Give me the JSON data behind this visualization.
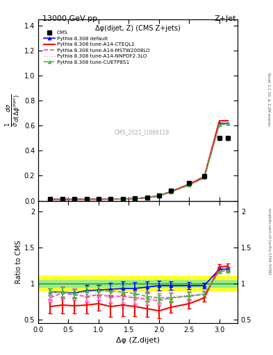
{
  "title_top": "13000 GeV pp",
  "title_right": "Z+Jet",
  "plot_title": "Δφ(dijet, Z) (CMS Z+jets)",
  "watermark": "CMS_2021_I1866118",
  "xlabel": "Δφ (Z,dijet)",
  "ylabel_ratio": "Ratio to CMS",
  "right_label": "Rivet 3.1.10, ≥ 2.2M events",
  "right_label2": "mcplots.cern.ch [arXiv:1306.3436]",
  "cms_x": [
    0.2,
    0.4,
    0.6,
    0.8,
    1.0,
    1.2,
    1.4,
    1.6,
    1.8,
    2.0,
    2.2,
    2.5,
    2.75,
    3.0,
    3.14
  ],
  "cms_y": [
    0.012,
    0.012,
    0.013,
    0.013,
    0.013,
    0.014,
    0.015,
    0.018,
    0.025,
    0.042,
    0.08,
    0.14,
    0.195,
    0.5,
    0.5
  ],
  "cms_yerr": [
    0.001,
    0.001,
    0.001,
    0.001,
    0.001,
    0.001,
    0.001,
    0.001,
    0.002,
    0.003,
    0.005,
    0.008,
    0.01,
    0.02,
    0.02
  ],
  "default_x": [
    0.2,
    0.4,
    0.6,
    0.8,
    1.0,
    1.2,
    1.4,
    1.6,
    1.8,
    2.0,
    2.2,
    2.5,
    2.75,
    3.0,
    3.14
  ],
  "default_y": [
    0.011,
    0.011,
    0.011,
    0.012,
    0.012,
    0.013,
    0.014,
    0.017,
    0.024,
    0.04,
    0.073,
    0.13,
    0.19,
    0.62,
    0.62
  ],
  "cteql1_x": [
    0.2,
    0.4,
    0.6,
    0.8,
    1.0,
    1.2,
    1.4,
    1.6,
    1.8,
    2.0,
    2.2,
    2.5,
    2.75,
    3.0,
    3.14
  ],
  "cteql1_y": [
    0.011,
    0.011,
    0.011,
    0.012,
    0.012,
    0.013,
    0.014,
    0.017,
    0.024,
    0.04,
    0.074,
    0.132,
    0.192,
    0.64,
    0.64
  ],
  "mstw_x": [
    0.2,
    0.4,
    0.6,
    0.8,
    1.0,
    1.2,
    1.4,
    1.6,
    1.8,
    2.0,
    2.2,
    2.5,
    2.75,
    3.0,
    3.14
  ],
  "mstw_y": [
    0.01,
    0.011,
    0.011,
    0.011,
    0.012,
    0.013,
    0.014,
    0.017,
    0.024,
    0.038,
    0.07,
    0.125,
    0.183,
    0.61,
    0.61
  ],
  "nnpdf_x": [
    0.2,
    0.4,
    0.6,
    0.8,
    1.0,
    1.2,
    1.4,
    1.6,
    1.8,
    2.0,
    2.2,
    2.5,
    2.75,
    3.0,
    3.14
  ],
  "nnpdf_y": [
    0.01,
    0.011,
    0.011,
    0.011,
    0.012,
    0.013,
    0.014,
    0.017,
    0.024,
    0.038,
    0.07,
    0.125,
    0.183,
    0.61,
    0.61
  ],
  "cuetp_x": [
    0.2,
    0.4,
    0.6,
    0.8,
    1.0,
    1.2,
    1.4,
    1.6,
    1.8,
    2.0,
    2.2,
    2.5,
    2.75,
    3.0,
    3.14
  ],
  "cuetp_y": [
    0.011,
    0.011,
    0.011,
    0.012,
    0.012,
    0.013,
    0.014,
    0.017,
    0.024,
    0.038,
    0.07,
    0.127,
    0.185,
    0.61,
    0.62
  ],
  "ratio_x": [
    0.2,
    0.4,
    0.6,
    0.8,
    1.0,
    1.2,
    1.4,
    1.6,
    1.8,
    2.0,
    2.2,
    2.5,
    2.75,
    3.0,
    3.14
  ],
  "ratio_default_y": [
    0.88,
    0.88,
    0.87,
    0.9,
    0.91,
    0.92,
    0.93,
    0.93,
    0.95,
    0.97,
    0.97,
    0.97,
    0.97,
    1.2,
    1.2
  ],
  "ratio_cteql1_y": [
    0.68,
    0.7,
    0.69,
    0.7,
    0.72,
    0.68,
    0.7,
    0.68,
    0.65,
    0.62,
    0.67,
    0.72,
    0.8,
    1.23,
    1.24
  ],
  "ratio_mstw_y": [
    0.8,
    0.87,
    0.84,
    0.82,
    0.84,
    0.82,
    0.82,
    0.8,
    0.78,
    0.76,
    0.8,
    0.82,
    0.85,
    1.17,
    1.18
  ],
  "ratio_nnpdf_y": [
    0.82,
    0.89,
    0.86,
    0.84,
    0.86,
    0.84,
    0.84,
    0.82,
    0.8,
    0.79,
    0.82,
    0.84,
    0.86,
    1.18,
    1.19
  ],
  "ratio_cuetp_y": [
    0.88,
    0.88,
    0.86,
    0.89,
    0.9,
    0.89,
    0.88,
    0.86,
    0.82,
    0.8,
    0.8,
    0.83,
    0.85,
    1.17,
    1.18
  ],
  "ratio_default_yerr": [
    0.05,
    0.07,
    0.06,
    0.08,
    0.07,
    0.09,
    0.1,
    0.09,
    0.08,
    0.07,
    0.06,
    0.05,
    0.04,
    0.03,
    0.03
  ],
  "ratio_cteql1_yerr": [
    0.1,
    0.12,
    0.11,
    0.12,
    0.1,
    0.14,
    0.15,
    0.13,
    0.11,
    0.1,
    0.08,
    0.07,
    0.05,
    0.04,
    0.04
  ],
  "ratio_mstw_yerr": [
    0.06,
    0.08,
    0.07,
    0.08,
    0.07,
    0.09,
    0.1,
    0.09,
    0.08,
    0.07,
    0.06,
    0.05,
    0.04,
    0.03,
    0.03
  ],
  "ratio_nnpdf_yerr": [
    0.06,
    0.08,
    0.07,
    0.08,
    0.07,
    0.09,
    0.1,
    0.09,
    0.08,
    0.07,
    0.06,
    0.05,
    0.04,
    0.03,
    0.03
  ],
  "ratio_cuetp_yerr": [
    0.05,
    0.07,
    0.06,
    0.07,
    0.07,
    0.08,
    0.09,
    0.08,
    0.07,
    0.06,
    0.06,
    0.05,
    0.04,
    0.03,
    0.03
  ],
  "ylim_main": [
    0.0,
    1.45
  ],
  "ylim_ratio": [
    0.45,
    2.15
  ],
  "xlim": [
    0.0,
    3.3
  ],
  "yticks_main": [
    0.0,
    0.2,
    0.4,
    0.6,
    0.8,
    1.0,
    1.2,
    1.4
  ],
  "yticks_ratio": [
    0.5,
    1.0,
    1.5,
    2.0
  ],
  "color_cms": "black",
  "color_default": "blue",
  "color_cteql1": "red",
  "color_mstw": "#ff44aa",
  "color_nnpdf": "#ff88cc",
  "color_cuetp": "#44bb44",
  "band_yellow_low": 0.9,
  "band_yellow_high": 1.1,
  "band_green_low": 0.95,
  "band_green_high": 1.05
}
